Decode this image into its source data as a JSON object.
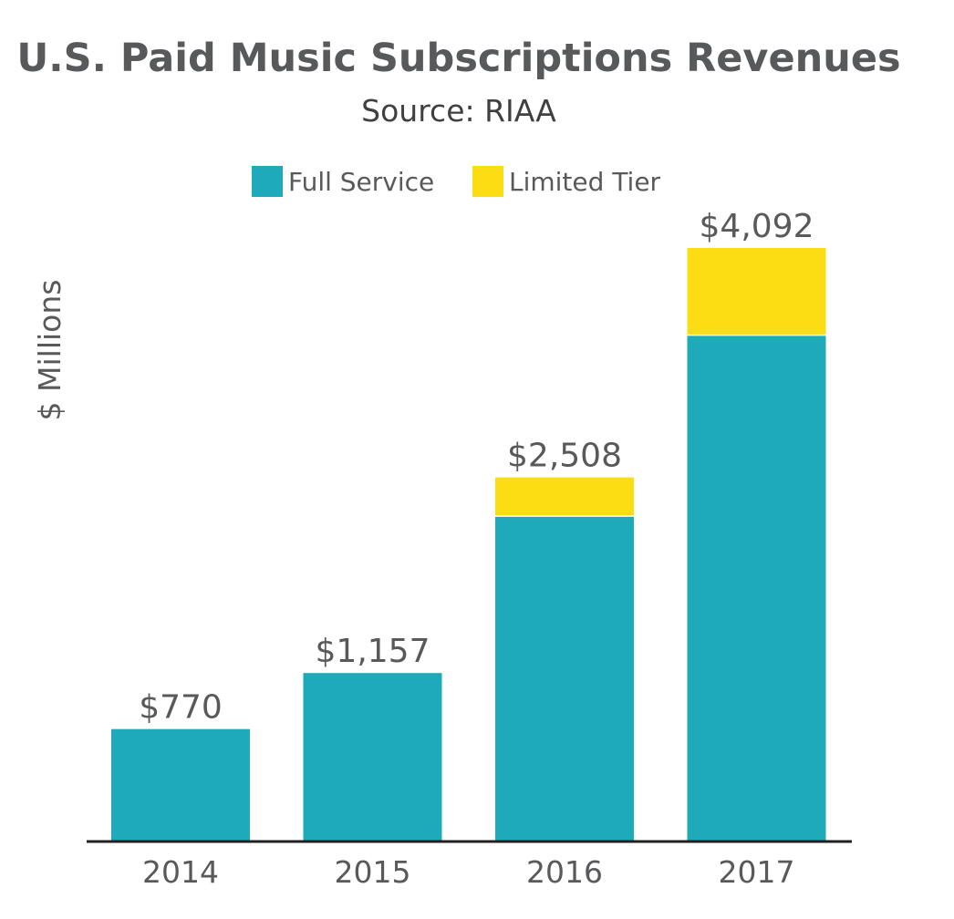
{
  "chart_data": {
    "type": "bar",
    "stacked": true,
    "title": "U.S. Paid Music Subscriptions Revenues",
    "subtitle": "Source: RIAA",
    "ylabel": "$ Millions",
    "xlabel": "",
    "categories": [
      "2014",
      "2015",
      "2016",
      "2017"
    ],
    "series": [
      {
        "name": "Full Service",
        "color": "#1eaab8",
        "values": [
          770,
          1157,
          2240,
          3490
        ]
      },
      {
        "name": "Limited Tier",
        "color": "#fcdc13",
        "values": [
          0,
          0,
          268,
          602
        ]
      }
    ],
    "totals": [
      770,
      1157,
      2508,
      4092
    ],
    "total_labels": [
      "$770",
      "$1,157",
      "$2,508",
      "$4,092"
    ],
    "ylim": [
      0,
      4092
    ],
    "grid": false,
    "legend_position": "top-center"
  }
}
